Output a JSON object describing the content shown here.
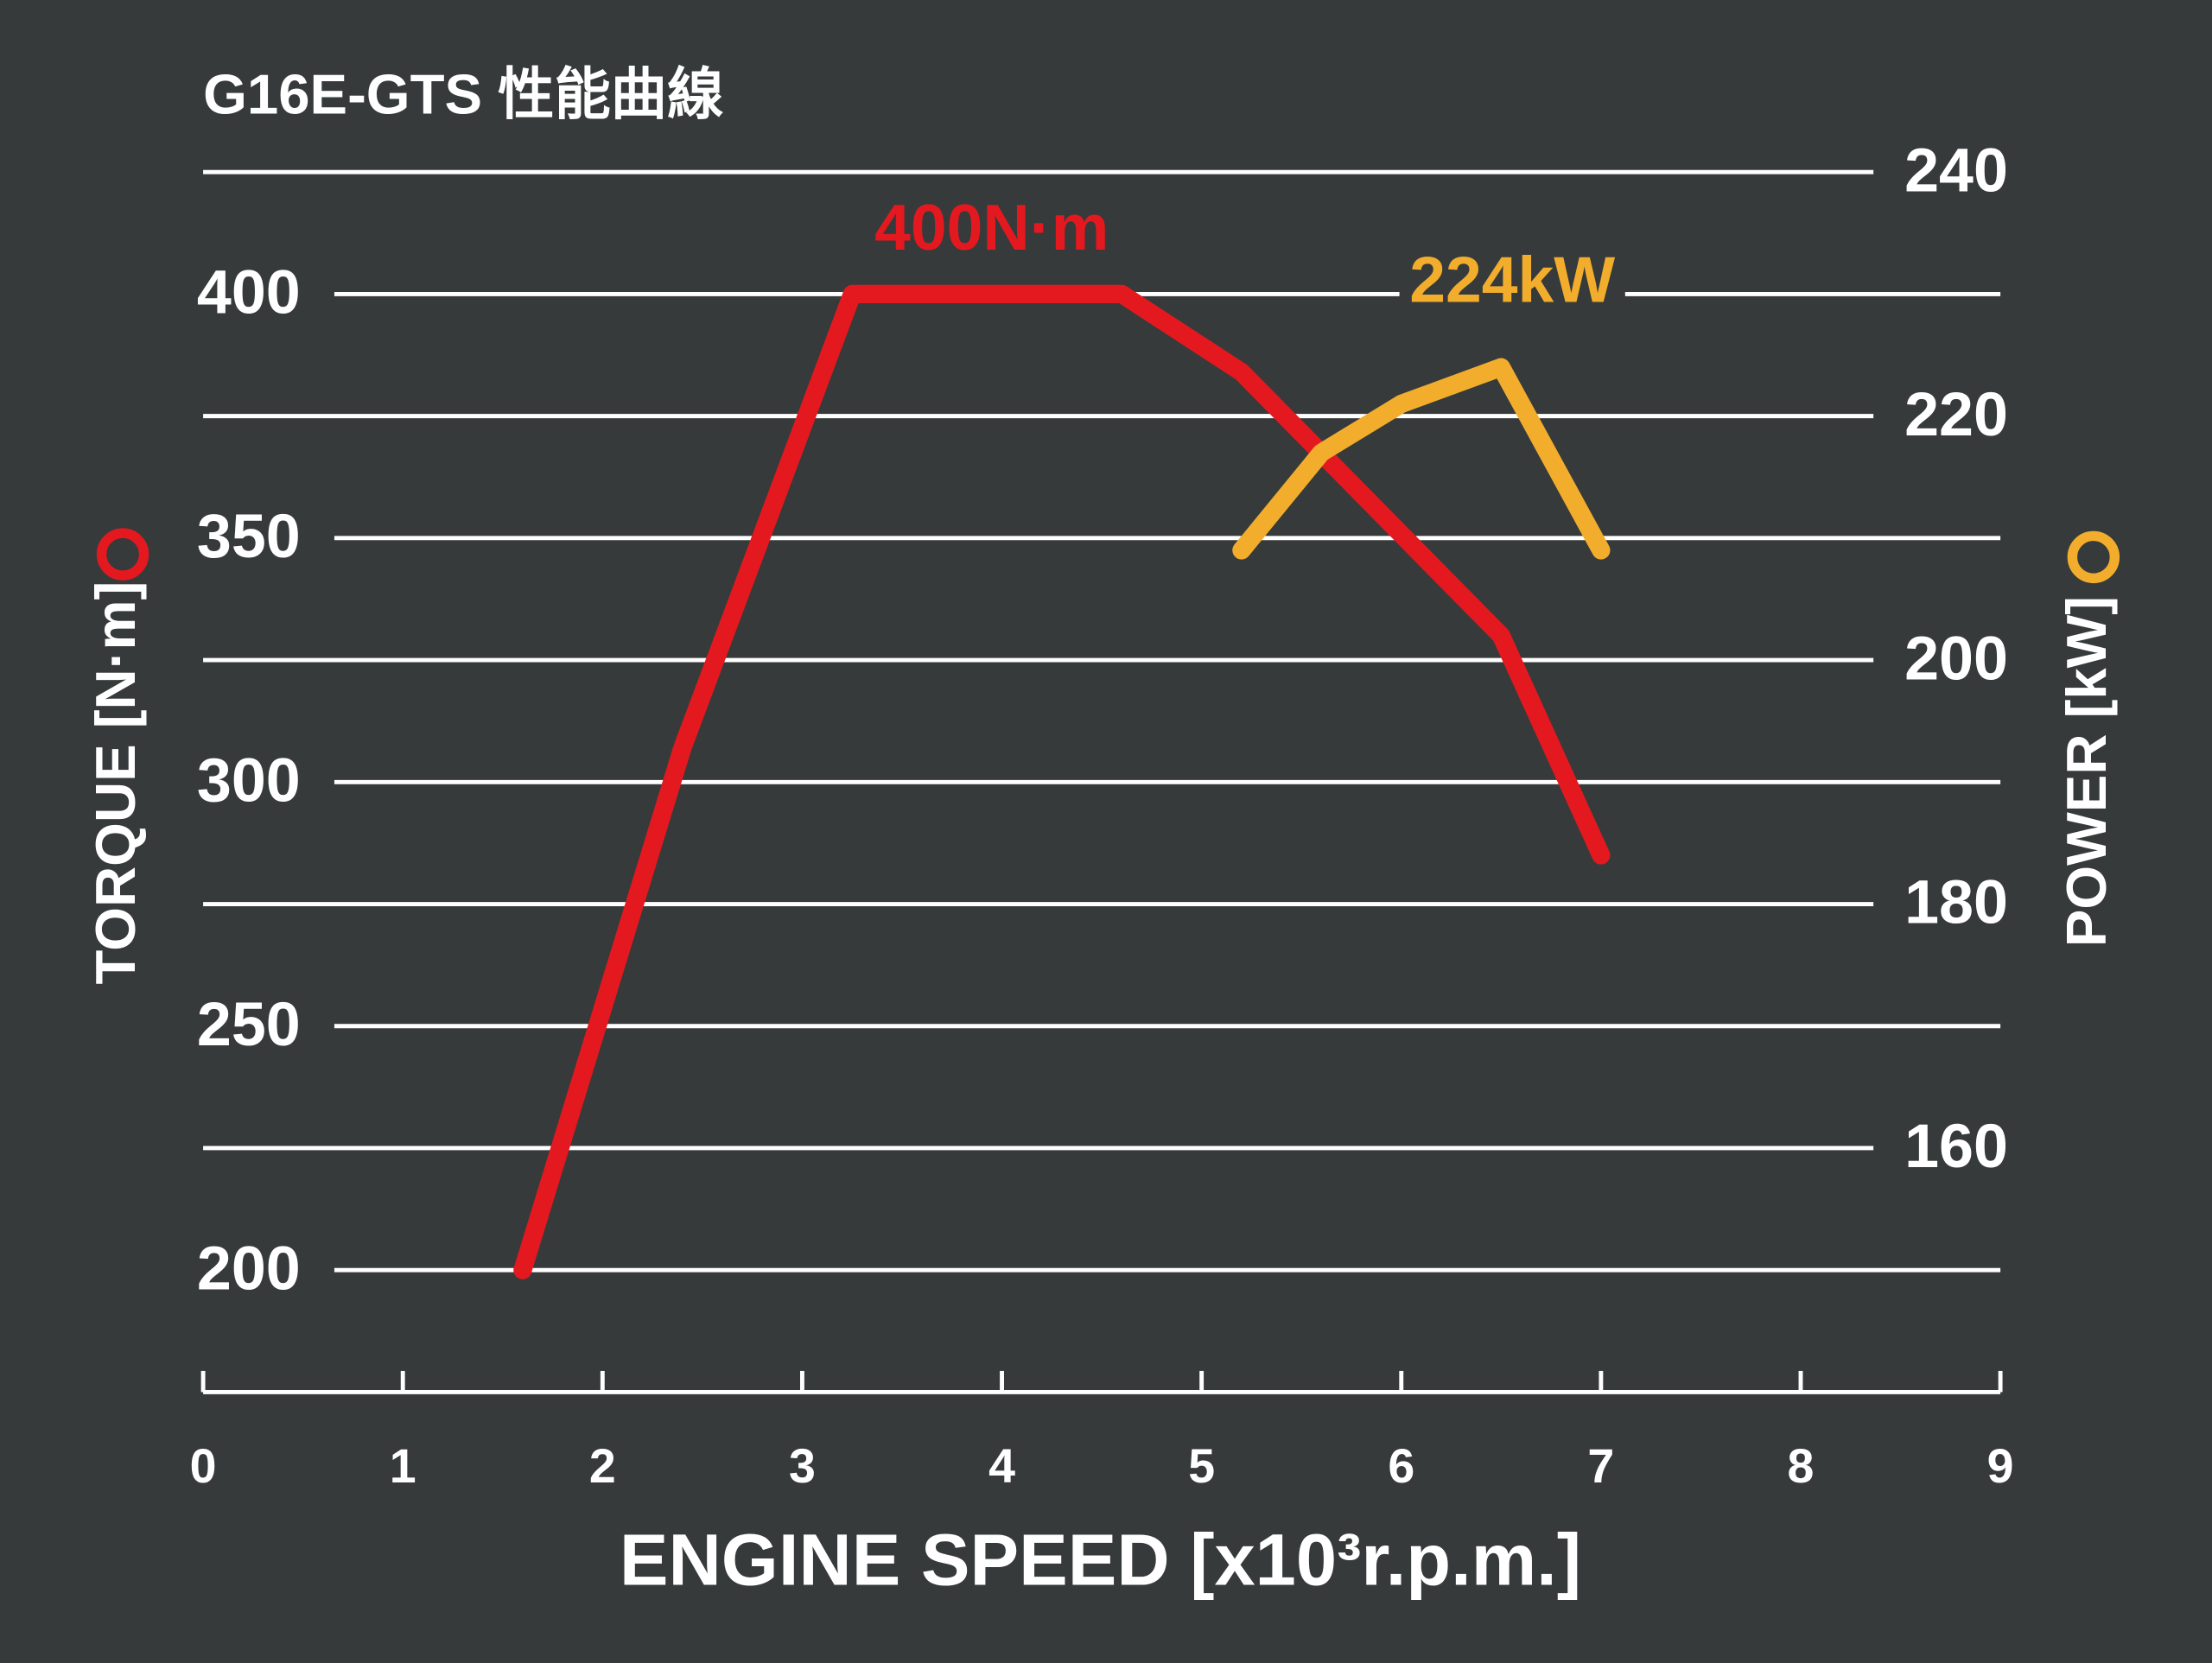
{
  "chart_data": {
    "type": "line",
    "title": "G16E-GTS 性能曲線",
    "xlabel": "ENGINE SPEED [x10³r.p.m.]",
    "xlim": [
      0,
      9
    ],
    "xticks": [
      0,
      1,
      2,
      3,
      4,
      5,
      6,
      7,
      8,
      9
    ],
    "ylim": [
      175,
      425
    ],
    "yticks": [
      200,
      250,
      300,
      350,
      400
    ],
    "y2lim": [
      140,
      240
    ],
    "y2ticks": [
      160,
      180,
      200,
      220,
      240
    ],
    "grid": true,
    "series": [
      {
        "name": "TORQUE [N·m]",
        "color": "#e3191f",
        "x": [
          1.6,
          2.4,
          3.25,
          4.6,
          5.2,
          6.5,
          7.0
        ],
        "values": [
          200,
          307,
          400,
          400,
          384,
          330,
          285
        ]
      },
      {
        "name": "POWER [kW]",
        "color": "#f3ad2c",
        "axis": "y2",
        "x": [
          5.2,
          5.6,
          6.0,
          6.5,
          7.0
        ],
        "values": [
          209,
          217,
          221,
          224,
          209
        ]
      }
    ],
    "annotations": [
      "400N·m",
      "224kW"
    ]
  }
}
